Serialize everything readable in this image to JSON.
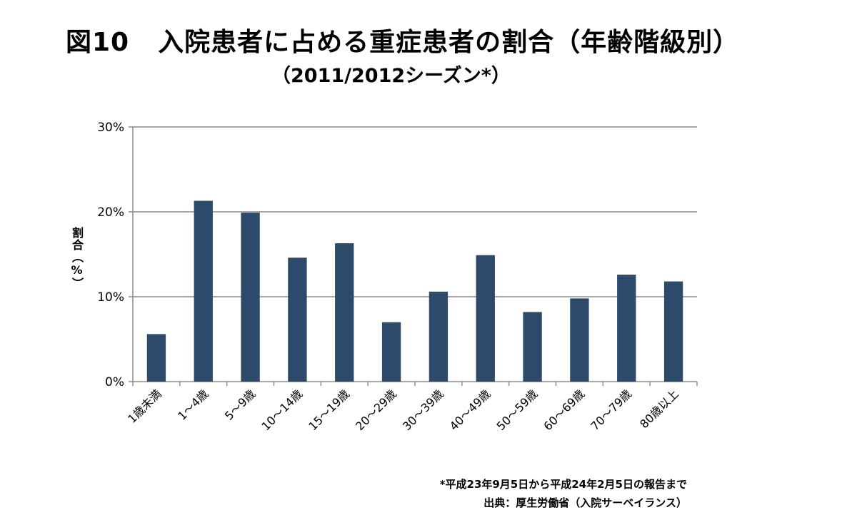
{
  "header": {
    "title_number": "図10",
    "title_text": "入院患者に占める重症患者の割合（年齢階級別）",
    "subtitle": "（2011/2012シーズン*）"
  },
  "footer": {
    "note": "*平成23年9月5日から平成24年2月5日の報告まで",
    "source": "出典：厚生労働省（入院サーベイランス）"
  },
  "chart_data": {
    "type": "bar",
    "title": "入院患者に占める重症患者の割合（年齢階級別）",
    "subtitle": "（2011/2012シーズン*）",
    "xlabel": "",
    "ylabel": "割合（%）",
    "categories": [
      "1歳未満",
      "1～4歳",
      "5～9歳",
      "10～14歳",
      "15～19歳",
      "20～29歳",
      "30～39歳",
      "40～49歳",
      "50～59歳",
      "60～69歳",
      "70～79歳",
      "80歳以上"
    ],
    "values": [
      5.6,
      21.3,
      19.9,
      14.6,
      16.3,
      7.0,
      10.6,
      14.9,
      8.2,
      9.8,
      12.6,
      11.8
    ],
    "ylim": [
      0,
      30
    ],
    "yticks": [
      0,
      10,
      20,
      30
    ],
    "ytick_labels": [
      "0%",
      "10%",
      "20%",
      "30%"
    ],
    "grid": true,
    "legend": "none",
    "bar_color": "#2e4a6b",
    "grid_color": "#8c8c8c"
  }
}
